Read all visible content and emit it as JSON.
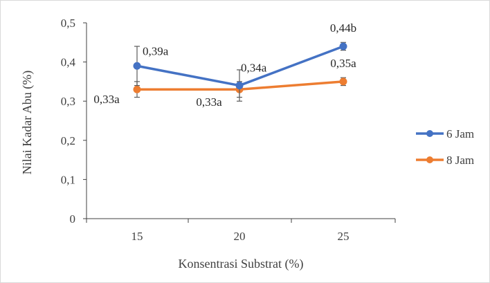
{
  "chart_data": {
    "type": "line",
    "xlabel": "Konsentrasi Substrat (%)",
    "ylabel": "Nilai Kadar Abu (%)",
    "categories": [
      "15",
      "20",
      "25"
    ],
    "ylim": [
      0,
      0.5
    ],
    "yticks": [
      0,
      0.1,
      0.2,
      0.3,
      0.4,
      0.5
    ],
    "ytick_labels": [
      "0",
      "0,1",
      "0,2",
      "0,3",
      "0,4",
      "0,5"
    ],
    "grid": false,
    "legend_position": "right",
    "series": [
      {
        "name": "6 Jam",
        "color": "#4472C4",
        "values": [
          0.39,
          0.34,
          0.44
        ],
        "errors": [
          0.05,
          0.04,
          0.01
        ],
        "labels": [
          "0,39a",
          "0,34a",
          "0,44b"
        ]
      },
      {
        "name": "8 Jam",
        "color": "#ED7D31",
        "values": [
          0.33,
          0.33,
          0.35
        ],
        "errors": [
          0.02,
          0.02,
          0.01
        ],
        "labels": [
          "0,33a",
          "0,33a",
          "0,35a"
        ]
      }
    ]
  }
}
